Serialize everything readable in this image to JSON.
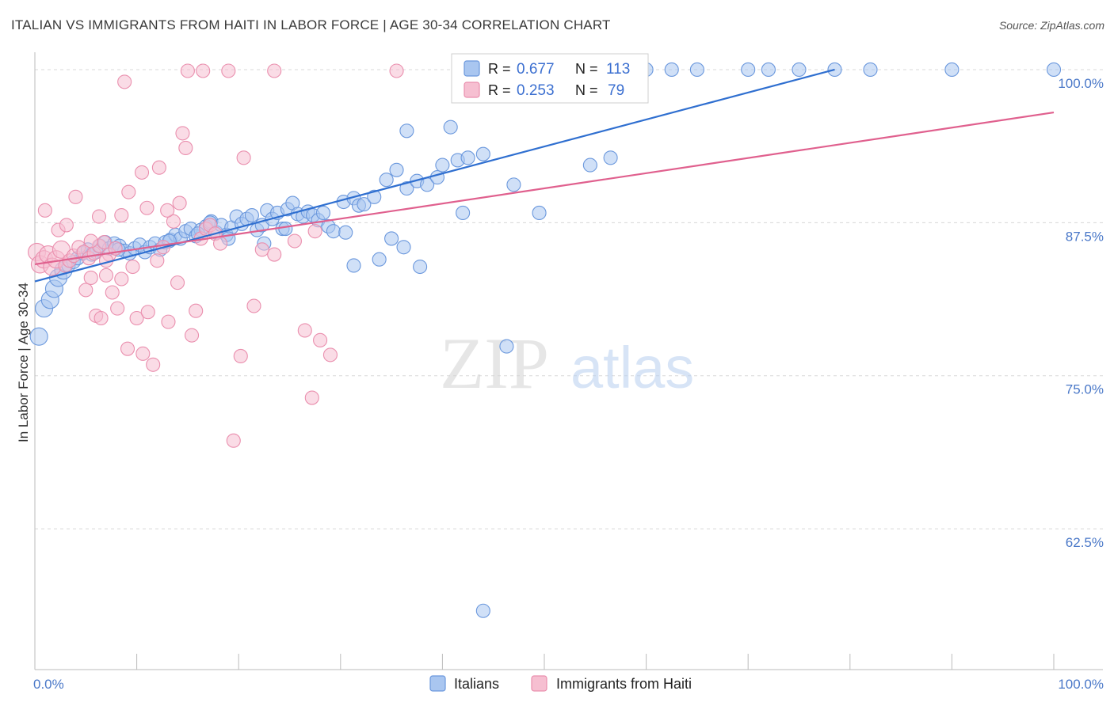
{
  "header": {
    "title": "ITALIAN VS IMMIGRANTS FROM HAITI IN LABOR FORCE | AGE 30-34 CORRELATION CHART",
    "source": "Source: ZipAtlas.com"
  },
  "watermark": {
    "zip": "ZIP",
    "atlas": "atlas"
  },
  "colors": {
    "italians_fill": "#a9c6f0",
    "italians_stroke": "#6b98dd",
    "italians_line": "#2f6fd0",
    "haiti_fill": "#f6bfd1",
    "haiti_stroke": "#ea8fae",
    "haiti_line": "#e0608e",
    "tick_label": "#4a78c8",
    "grid": "#d8d8d8"
  },
  "legend": {
    "rows": [
      {
        "r_label": "R =",
        "r_value": "0.677",
        "n_label": "N =",
        "n_value": "113"
      },
      {
        "r_label": "R =",
        "r_value": "0.253",
        "n_label": "N =",
        "n_value": "79"
      }
    ]
  },
  "chart_data": {
    "type": "scatter",
    "xlabel": "",
    "ylabel": "In Labor Force | Age 30-34",
    "xlim": [
      0,
      100
    ],
    "ylim": [
      51,
      102
    ],
    "x_tick_labels": [
      "0.0%",
      "100.0%"
    ],
    "y_ticks": [
      62.5,
      75.0,
      87.5,
      100.0
    ],
    "y_tick_labels": [
      "62.5%",
      "75.0%",
      "87.5%",
      "100.0%"
    ],
    "grid": true,
    "legend_position": "top-center",
    "series": [
      {
        "name": "Italians",
        "trendline": [
          [
            0,
            82.7
          ],
          [
            78.5,
            100.0
          ]
        ],
        "points": [
          [
            0.4,
            78.2
          ],
          [
            0.9,
            80.5
          ],
          [
            1.5,
            81.2
          ],
          [
            1.9,
            82.1
          ],
          [
            2.3,
            83.0
          ],
          [
            2.8,
            83.6
          ],
          [
            3.3,
            84.0
          ],
          [
            3.8,
            84.3
          ],
          [
            4.2,
            84.6
          ],
          [
            4.7,
            85.0
          ],
          [
            5.2,
            85.3
          ],
          [
            5.6,
            84.9
          ],
          [
            6.0,
            85.1
          ],
          [
            6.4,
            85.6
          ],
          [
            6.9,
            85.9
          ],
          [
            7.3,
            85.4
          ],
          [
            7.8,
            85.8
          ],
          [
            8.3,
            85.6
          ],
          [
            8.8,
            85.2
          ],
          [
            9.3,
            85.0
          ],
          [
            9.8,
            85.4
          ],
          [
            10.3,
            85.7
          ],
          [
            10.8,
            85.1
          ],
          [
            11.3,
            85.5
          ],
          [
            11.8,
            85.8
          ],
          [
            12.3,
            85.3
          ],
          [
            12.8,
            85.9
          ],
          [
            13.3,
            86.1
          ],
          [
            13.8,
            86.5
          ],
          [
            14.3,
            86.2
          ],
          [
            14.8,
            86.8
          ],
          [
            15.3,
            87.0
          ],
          [
            15.8,
            86.4
          ],
          [
            16.3,
            86.9
          ],
          [
            16.8,
            87.2
          ],
          [
            17.3,
            87.6
          ],
          [
            17.8,
            86.7
          ],
          [
            18.3,
            87.3
          ],
          [
            18.8,
            86.5
          ],
          [
            19.3,
            87.1
          ],
          [
            19.8,
            88.0
          ],
          [
            20.3,
            87.4
          ],
          [
            20.8,
            87.8
          ],
          [
            21.3,
            88.1
          ],
          [
            21.8,
            86.9
          ],
          [
            22.3,
            87.3
          ],
          [
            22.8,
            88.5
          ],
          [
            23.3,
            87.8
          ],
          [
            23.8,
            88.3
          ],
          [
            24.3,
            87.0
          ],
          [
            24.8,
            88.6
          ],
          [
            25.3,
            89.1
          ],
          [
            25.8,
            88.2
          ],
          [
            26.3,
            88.0
          ],
          [
            26.8,
            88.4
          ],
          [
            27.3,
            88.1
          ],
          [
            27.8,
            87.7
          ],
          [
            28.3,
            88.3
          ],
          [
            28.8,
            87.2
          ],
          [
            29.3,
            86.8
          ],
          [
            30.3,
            89.2
          ],
          [
            31.3,
            89.5
          ],
          [
            31.8,
            88.9
          ],
          [
            32.3,
            89.0
          ],
          [
            33.3,
            89.6
          ],
          [
            34.5,
            91.0
          ],
          [
            35.5,
            91.8
          ],
          [
            36.5,
            90.3
          ],
          [
            37.5,
            90.9
          ],
          [
            38.5,
            90.6
          ],
          [
            39.5,
            91.2
          ],
          [
            40.0,
            92.2
          ],
          [
            41.5,
            92.6
          ],
          [
            42.5,
            92.8
          ],
          [
            44.0,
            93.1
          ],
          [
            8.2,
            85.3
          ],
          [
            13.2,
            86.0
          ],
          [
            16.0,
            86.6
          ],
          [
            17.2,
            87.5
          ],
          [
            19.0,
            86.2
          ],
          [
            22.5,
            85.8
          ],
          [
            24.6,
            87.0
          ],
          [
            30.5,
            86.7
          ],
          [
            31.3,
            84.0
          ],
          [
            33.8,
            84.5
          ],
          [
            35.0,
            86.2
          ],
          [
            36.2,
            85.5
          ],
          [
            37.8,
            83.9
          ],
          [
            42.0,
            88.3
          ],
          [
            47.0,
            90.6
          ],
          [
            49.5,
            88.3
          ],
          [
            48.0,
            98.6
          ],
          [
            36.5,
            95.0
          ],
          [
            40.8,
            95.3
          ],
          [
            44.5,
            99.9
          ],
          [
            52.0,
            99.9
          ],
          [
            55.0,
            100.0
          ],
          [
            56.5,
            99.9
          ],
          [
            60.0,
            100.0
          ],
          [
            62.5,
            100.0
          ],
          [
            65.0,
            100.0
          ],
          [
            70.0,
            100.0
          ],
          [
            72.0,
            100.0
          ],
          [
            75.0,
            100.0
          ],
          [
            78.5,
            100.0
          ],
          [
            82.0,
            100.0
          ],
          [
            90.0,
            100.0
          ],
          [
            100.0,
            100.0
          ],
          [
            50.0,
            100.0
          ],
          [
            56.5,
            92.8
          ],
          [
            54.5,
            92.2
          ],
          [
            46.3,
            77.4
          ],
          [
            44.0,
            55.8
          ]
        ]
      },
      {
        "name": "Immigrants from Haiti",
        "trendline": [
          [
            0,
            84.1
          ],
          [
            100,
            96.5
          ]
        ],
        "points": [
          [
            0.2,
            85.1
          ],
          [
            0.5,
            84.1
          ],
          [
            0.9,
            84.5
          ],
          [
            1.3,
            84.9
          ],
          [
            1.7,
            83.9
          ],
          [
            2.1,
            84.5
          ],
          [
            2.6,
            85.3
          ],
          [
            3.0,
            84.0
          ],
          [
            3.4,
            84.4
          ],
          [
            3.8,
            84.8
          ],
          [
            4.3,
            85.5
          ],
          [
            4.8,
            85.1
          ],
          [
            5.3,
            84.6
          ],
          [
            5.8,
            85.0
          ],
          [
            6.3,
            85.6
          ],
          [
            6.8,
            85.9
          ],
          [
            7.3,
            84.9
          ],
          [
            7.9,
            85.4
          ],
          [
            2.3,
            86.9
          ],
          [
            3.1,
            87.3
          ],
          [
            4.0,
            89.6
          ],
          [
            5.0,
            82.0
          ],
          [
            5.5,
            83.0
          ],
          [
            6.0,
            79.9
          ],
          [
            6.5,
            79.7
          ],
          [
            7.0,
            83.2
          ],
          [
            7.6,
            81.8
          ],
          [
            8.1,
            80.5
          ],
          [
            8.5,
            82.9
          ],
          [
            9.1,
            77.2
          ],
          [
            9.6,
            83.9
          ],
          [
            10.0,
            79.7
          ],
          [
            10.6,
            76.8
          ],
          [
            11.1,
            80.2
          ],
          [
            11.6,
            75.9
          ],
          [
            12.0,
            84.4
          ],
          [
            12.6,
            85.5
          ],
          [
            13.1,
            79.4
          ],
          [
            13.6,
            87.6
          ],
          [
            14.2,
            89.1
          ],
          [
            14.5,
            94.8
          ],
          [
            14.8,
            93.6
          ],
          [
            15.0,
            99.9
          ],
          [
            15.4,
            78.3
          ],
          [
            15.8,
            80.3
          ],
          [
            16.3,
            86.2
          ],
          [
            16.8,
            87.0
          ],
          [
            17.2,
            87.3
          ],
          [
            17.7,
            86.6
          ],
          [
            18.2,
            85.8
          ],
          [
            11.0,
            88.7
          ],
          [
            12.2,
            92.0
          ],
          [
            13.0,
            88.5
          ],
          [
            14.0,
            82.6
          ],
          [
            10.5,
            91.6
          ],
          [
            9.2,
            90.0
          ],
          [
            8.5,
            88.1
          ],
          [
            7.0,
            84.4
          ],
          [
            6.3,
            88.0
          ],
          [
            5.5,
            86.0
          ],
          [
            20.5,
            92.8
          ],
          [
            20.2,
            76.6
          ],
          [
            21.5,
            80.7
          ],
          [
            22.3,
            85.3
          ],
          [
            23.5,
            84.9
          ],
          [
            25.5,
            86.0
          ],
          [
            26.5,
            78.7
          ],
          [
            27.5,
            86.8
          ],
          [
            28.0,
            77.9
          ],
          [
            29.0,
            76.7
          ],
          [
            27.2,
            73.2
          ],
          [
            19.5,
            69.7
          ],
          [
            16.5,
            99.9
          ],
          [
            19.0,
            99.9
          ],
          [
            23.5,
            99.9
          ],
          [
            35.5,
            99.9
          ],
          [
            47.5,
            98.9
          ],
          [
            8.8,
            99.0
          ],
          [
            1.0,
            88.5
          ]
        ]
      }
    ]
  }
}
